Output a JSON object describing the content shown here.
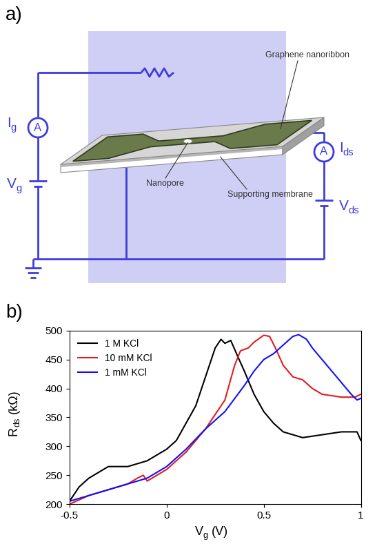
{
  "diagram": {
    "panel_label": "a)",
    "callouts": [
      "Graphene nanoribbon",
      "Nanopore",
      "Supporting membrane"
    ],
    "gate": {
      "current": {
        "text": "I",
        "subscript": "g"
      },
      "voltage": {
        "text": "V",
        "subscript": "g"
      },
      "meter": "A"
    },
    "source_drain": {
      "current": {
        "text": "I",
        "subscript": "ds"
      },
      "voltage": {
        "text": "V",
        "subscript": "ds"
      },
      "meter": "A"
    }
  },
  "chart_data": {
    "panel_label": "b)",
    "type": "line",
    "x_label": {
      "text": "V",
      "subscript": "g",
      "suffix": "(V)"
    },
    "y_label": {
      "text": "R",
      "subscript": "ds",
      "suffix": "(kΩ)"
    },
    "xlim": [
      -0.5,
      1
    ],
    "xticks": [
      -0.5,
      0,
      0.5,
      1
    ],
    "ylim": [
      200,
      500
    ],
    "yticks": [
      200,
      250,
      300,
      350,
      400,
      450,
      500
    ],
    "legend": "upper left",
    "series": [
      {
        "name": "1 M KCl",
        "color": "#000000",
        "x": [
          -0.5,
          -0.45,
          -0.4,
          -0.3,
          -0.2,
          -0.1,
          0,
          0.05,
          0.1,
          0.15,
          0.2,
          0.25,
          0.28,
          0.3,
          0.33,
          0.36,
          0.4,
          0.45,
          0.5,
          0.55,
          0.6,
          0.7,
          0.8,
          0.9,
          0.98,
          1.0
        ],
        "values": [
          205,
          230,
          245,
          265,
          265,
          275,
          295,
          310,
          340,
          370,
          420,
          470,
          485,
          478,
          483,
          460,
          430,
          390,
          360,
          340,
          325,
          315,
          320,
          325,
          325,
          310
        ]
      },
      {
        "name": "10 mM KCl",
        "color": "#e41a1c",
        "x": [
          -0.5,
          -0.4,
          -0.3,
          -0.2,
          -0.15,
          -0.12,
          -0.1,
          0,
          0.1,
          0.2,
          0.3,
          0.35,
          0.38,
          0.42,
          0.45,
          0.5,
          0.53,
          0.56,
          0.6,
          0.65,
          0.7,
          0.75,
          0.8,
          0.9,
          0.97,
          1.0
        ],
        "values": [
          200,
          215,
          225,
          235,
          245,
          250,
          240,
          260,
          290,
          330,
          380,
          440,
          465,
          470,
          480,
          492,
          490,
          470,
          440,
          420,
          415,
          400,
          390,
          385,
          385,
          390
        ]
      },
      {
        "name": "1 mM KCl",
        "color": "#1010ff",
        "x": [
          -0.5,
          -0.4,
          -0.3,
          -0.2,
          -0.1,
          0,
          0.1,
          0.2,
          0.3,
          0.4,
          0.45,
          0.5,
          0.55,
          0.6,
          0.65,
          0.68,
          0.72,
          0.75,
          0.8,
          0.85,
          0.9,
          0.95,
          0.98,
          1.0
        ],
        "values": [
          205,
          215,
          225,
          235,
          245,
          265,
          295,
          330,
          360,
          405,
          430,
          450,
          460,
          475,
          490,
          493,
          485,
          470,
          450,
          430,
          410,
          390,
          380,
          383
        ]
      }
    ]
  }
}
